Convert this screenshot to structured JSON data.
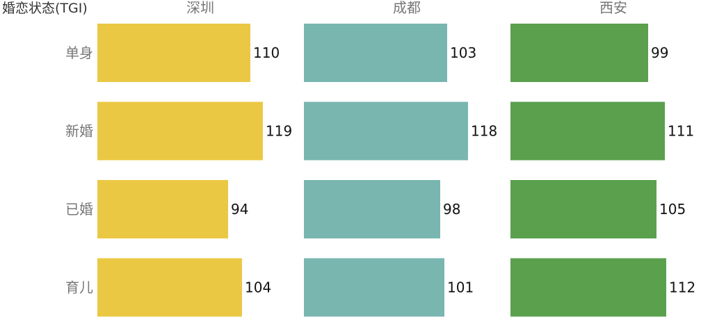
{
  "chart_data": {
    "type": "bar",
    "orientation": "horizontal",
    "title": "",
    "ylabel": "婚恋状态(TGI)",
    "categories": [
      "单身",
      "新婚",
      "已婚",
      "育儿"
    ],
    "xlim": [
      0,
      130
    ],
    "grid": false,
    "legend": "none",
    "data_labels": true,
    "series": [
      {
        "name": "深圳",
        "color": "#EBC844",
        "values": [
          110,
          119,
          94,
          104
        ]
      },
      {
        "name": "成都",
        "color": "#79B6B0",
        "values": [
          103,
          118,
          98,
          101
        ]
      },
      {
        "name": "西安",
        "color": "#5AA04D",
        "values": [
          99,
          111,
          105,
          112
        ]
      }
    ]
  }
}
